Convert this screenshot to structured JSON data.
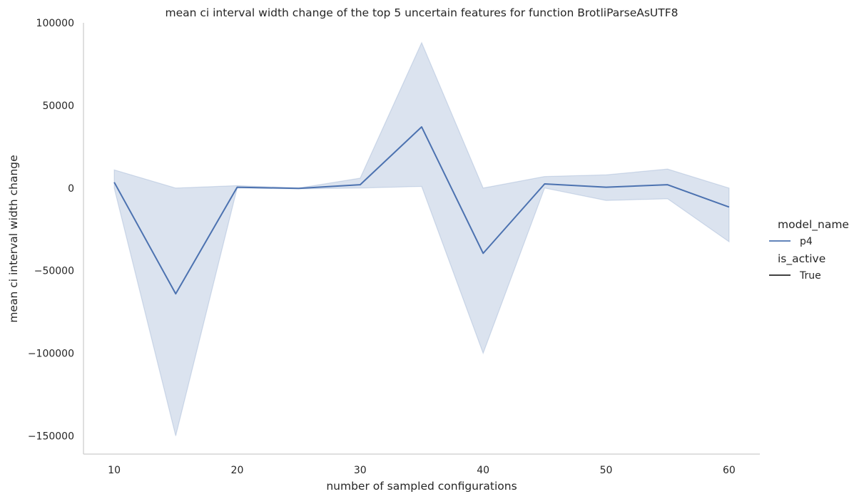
{
  "colors": {
    "line": "#4c72b0",
    "band": "#4c72b0",
    "legend_style": "#262626"
  },
  "chart_data": {
    "type": "line",
    "title": "mean ci interval width change of the top 5 uncertain features for function BrotliParseAsUTF8",
    "xlabel": "number of sampled configurations",
    "ylabel": "mean ci interval width change",
    "xlim": [
      7.5,
      62.5
    ],
    "ylim": [
      -161000,
      100000
    ],
    "xticks": [
      10,
      20,
      30,
      40,
      50,
      60
    ],
    "yticks": [
      100000,
      50000,
      0,
      -50000,
      -100000,
      -150000
    ],
    "ytick_labels": [
      "100000",
      "50000",
      "0",
      "−50000",
      "−100000",
      "−150000"
    ],
    "grid": false,
    "legend": {
      "placement": "right",
      "groups": [
        {
          "title": "model_name",
          "entries": [
            "p4"
          ]
        },
        {
          "title": "is_active",
          "entries": [
            "True"
          ]
        }
      ]
    },
    "series": [
      {
        "name": "p4",
        "x": [
          10,
          15,
          20,
          25,
          30,
          35,
          40,
          45,
          50,
          55,
          60
        ],
        "y": [
          3500,
          -64000,
          500,
          -200,
          2000,
          37000,
          -39500,
          2500,
          500,
          2000,
          -11500
        ],
        "ci_low": [
          0,
          -150000,
          0,
          -500,
          0,
          1000,
          -100000,
          0,
          -7500,
          -6500,
          -32500
        ],
        "ci_high": [
          11000,
          0,
          1500,
          0,
          6000,
          88000,
          0,
          7000,
          8000,
          11500,
          0
        ]
      }
    ]
  }
}
